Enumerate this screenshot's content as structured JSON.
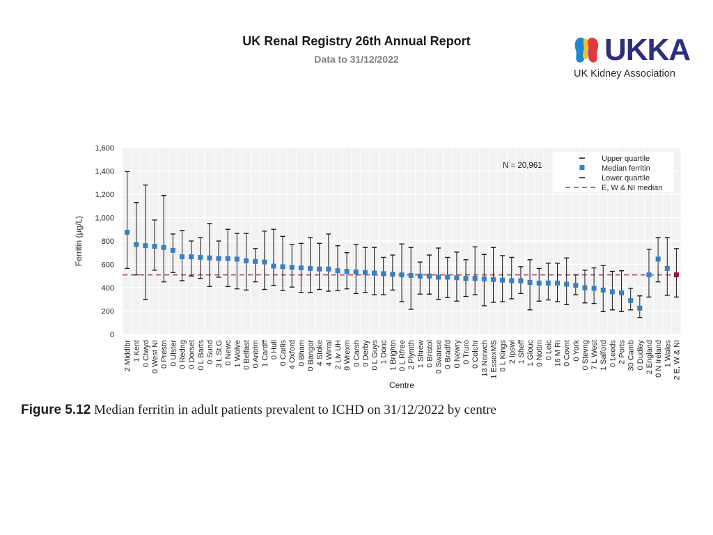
{
  "header": {
    "title": "UK Renal Registry 26th Annual Report",
    "subtitle": "Data to 31/12/2022"
  },
  "logo": {
    "wordmark": "UKKA",
    "tagline": "UK Kidney Association",
    "colors": {
      "navy": "#2e2f7a",
      "blue": "#1f8ad1",
      "yellow": "#f2c12e",
      "red": "#e03a3a",
      "pink": "#c2378a",
      "orange": "#f08a24"
    }
  },
  "figure": {
    "number": "Figure 5.12",
    "caption": "Median ferritin in adult patients prevalent to ICHD on 31/12/2022 by centre"
  },
  "chart_data": {
    "type": "scatter",
    "title": "",
    "xlabel": "Centre",
    "ylabel": "Ferritin (µg/L)",
    "ylim": [
      0,
      1600
    ],
    "yticks": [
      0,
      200,
      400,
      600,
      800,
      1000,
      1200,
      1400,
      1600
    ],
    "ytick_labels": [
      "0",
      "200",
      "400",
      "600",
      "800",
      "1,000",
      "1,200",
      "1,400",
      "1,600"
    ],
    "grid": true,
    "annotation": "N = 20,961",
    "reference_median": 510,
    "legend": {
      "position": "top-right",
      "items": [
        "Upper quartile",
        "Median ferritin",
        "Lower quartile",
        "E, W & NI median"
      ]
    },
    "colors": {
      "median_marker": "#3a7fc1",
      "reference_line": "#b5304f",
      "whisker": "#1a1a1a",
      "highlight_marker": "#8b1a3a",
      "plot_background": "#f2f2f2",
      "grid": "#ffffff"
    },
    "centres": [
      {
        "label": "2 Middlbr",
        "median": 875,
        "lower": 565,
        "upper": 1395
      },
      {
        "label": "1 Kent",
        "median": 770,
        "lower": 510,
        "upper": 1130
      },
      {
        "label": "0 Clwyd",
        "median": 760,
        "lower": 300,
        "upper": 1280
      },
      {
        "label": "0 West NI",
        "median": 755,
        "lower": 550,
        "upper": 980
      },
      {
        "label": "0 Prestn",
        "median": 745,
        "lower": 450,
        "upper": 1190
      },
      {
        "label": "0 Ulster",
        "median": 720,
        "lower": 530,
        "upper": 860
      },
      {
        "label": "0 Redng",
        "median": 665,
        "lower": 460,
        "upper": 890
      },
      {
        "label": "0 Dorset",
        "median": 665,
        "lower": 500,
        "upper": 800
      },
      {
        "label": "0 L Barts",
        "median": 660,
        "lower": 480,
        "upper": 830
      },
      {
        "label": "0 Sund",
        "median": 655,
        "lower": 410,
        "upper": 950
      },
      {
        "label": "3 L St.G",
        "median": 650,
        "lower": 490,
        "upper": 800
      },
      {
        "label": "0 Newc",
        "median": 650,
        "lower": 410,
        "upper": 900
      },
      {
        "label": "1 Wolve",
        "median": 645,
        "lower": 390,
        "upper": 865
      },
      {
        "label": "0 Belfast",
        "median": 630,
        "lower": 380,
        "upper": 865
      },
      {
        "label": "0 Antrim",
        "median": 625,
        "lower": 450,
        "upper": 735
      },
      {
        "label": "1 Cardff",
        "median": 620,
        "lower": 385,
        "upper": 885
      },
      {
        "label": "0 Hull",
        "median": 585,
        "lower": 420,
        "upper": 900
      },
      {
        "label": "0 Carlis",
        "median": 580,
        "lower": 375,
        "upper": 840
      },
      {
        "label": "4 Oxford",
        "median": 575,
        "lower": 405,
        "upper": 770
      },
      {
        "label": "0 Bham",
        "median": 570,
        "lower": 360,
        "upper": 780
      },
      {
        "label": "0 Bangor",
        "median": 565,
        "lower": 360,
        "upper": 830
      },
      {
        "label": "4 Stoke",
        "median": 560,
        "lower": 385,
        "upper": 780
      },
      {
        "label": "4 Wirral",
        "median": 560,
        "lower": 370,
        "upper": 860
      },
      {
        "label": "2 Liv UH",
        "median": 545,
        "lower": 375,
        "upper": 760
      },
      {
        "label": "9 Wrexm",
        "median": 540,
        "lower": 390,
        "upper": 700
      },
      {
        "label": "0 Carsh",
        "median": 535,
        "lower": 350,
        "upper": 770
      },
      {
        "label": "0 Derby",
        "median": 530,
        "lower": 360,
        "upper": 745
      },
      {
        "label": "0 L Guys",
        "median": 525,
        "lower": 340,
        "upper": 745
      },
      {
        "label": "1 Donc",
        "median": 520,
        "lower": 340,
        "upper": 660
      },
      {
        "label": "1 Brightn",
        "median": 515,
        "lower": 380,
        "upper": 680
      },
      {
        "label": "0 L Rfree",
        "median": 510,
        "lower": 280,
        "upper": 775
      },
      {
        "label": "2 Plymth",
        "median": 505,
        "lower": 215,
        "upper": 745
      },
      {
        "label": "1 Shrew",
        "median": 500,
        "lower": 345,
        "upper": 620
      },
      {
        "label": "0 Bristol",
        "median": 500,
        "lower": 345,
        "upper": 680
      },
      {
        "label": "0 Swanse",
        "median": 490,
        "lower": 300,
        "upper": 740
      },
      {
        "label": "0 Bradfd",
        "median": 490,
        "lower": 315,
        "upper": 660
      },
      {
        "label": "0 Newry",
        "median": 485,
        "lower": 285,
        "upper": 705
      },
      {
        "label": "0 Truro",
        "median": 480,
        "lower": 325,
        "upper": 640
      },
      {
        "label": "0 Colchr",
        "median": 480,
        "lower": 340,
        "upper": 750
      },
      {
        "label": "13 Norwch",
        "median": 475,
        "lower": 245,
        "upper": 685
      },
      {
        "label": "1 EssexMS",
        "median": 470,
        "lower": 275,
        "upper": 745
      },
      {
        "label": "0 L Kings",
        "median": 465,
        "lower": 280,
        "upper": 675
      },
      {
        "label": "2 Ipswi",
        "median": 460,
        "lower": 305,
        "upper": 660
      },
      {
        "label": "1 Sheff",
        "median": 460,
        "lower": 350,
        "upper": 580
      },
      {
        "label": "1 Glouc",
        "median": 445,
        "lower": 210,
        "upper": 640
      },
      {
        "label": "0 Nottm",
        "median": 440,
        "lower": 285,
        "upper": 565
      },
      {
        "label": "0 Leic",
        "median": 440,
        "lower": 295,
        "upper": 610
      },
      {
        "label": "16 M RI",
        "median": 440,
        "lower": 280,
        "upper": 610
      },
      {
        "label": "0 Covnt",
        "median": 430,
        "lower": 255,
        "upper": 655
      },
      {
        "label": "0 York",
        "median": 420,
        "lower": 340,
        "upper": 510
      },
      {
        "label": "0 Stevng",
        "median": 400,
        "lower": 270,
        "upper": 550
      },
      {
        "label": "7 L West",
        "median": 395,
        "lower": 265,
        "upper": 570
      },
      {
        "label": "1 Salford",
        "median": 380,
        "lower": 195,
        "upper": 590
      },
      {
        "label": "0 Leeds",
        "median": 365,
        "lower": 210,
        "upper": 540
      },
      {
        "label": "2 Ports",
        "median": 355,
        "lower": 195,
        "upper": 545
      },
      {
        "label": "30 Camb",
        "median": 290,
        "lower": 210,
        "upper": 395
      },
      {
        "label": "0 Dudley",
        "median": 225,
        "lower": 145,
        "upper": 330
      },
      {
        "label": "2 England",
        "median": 510,
        "lower": 320,
        "upper": 730
      },
      {
        "label": "0 N Ireland",
        "median": 645,
        "lower": 450,
        "upper": 830
      },
      {
        "label": "1 Wales",
        "median": 565,
        "lower": 335,
        "upper": 830
      },
      {
        "label": "2 E, W & NI",
        "median": 510,
        "lower": 320,
        "upper": 735
      }
    ]
  }
}
